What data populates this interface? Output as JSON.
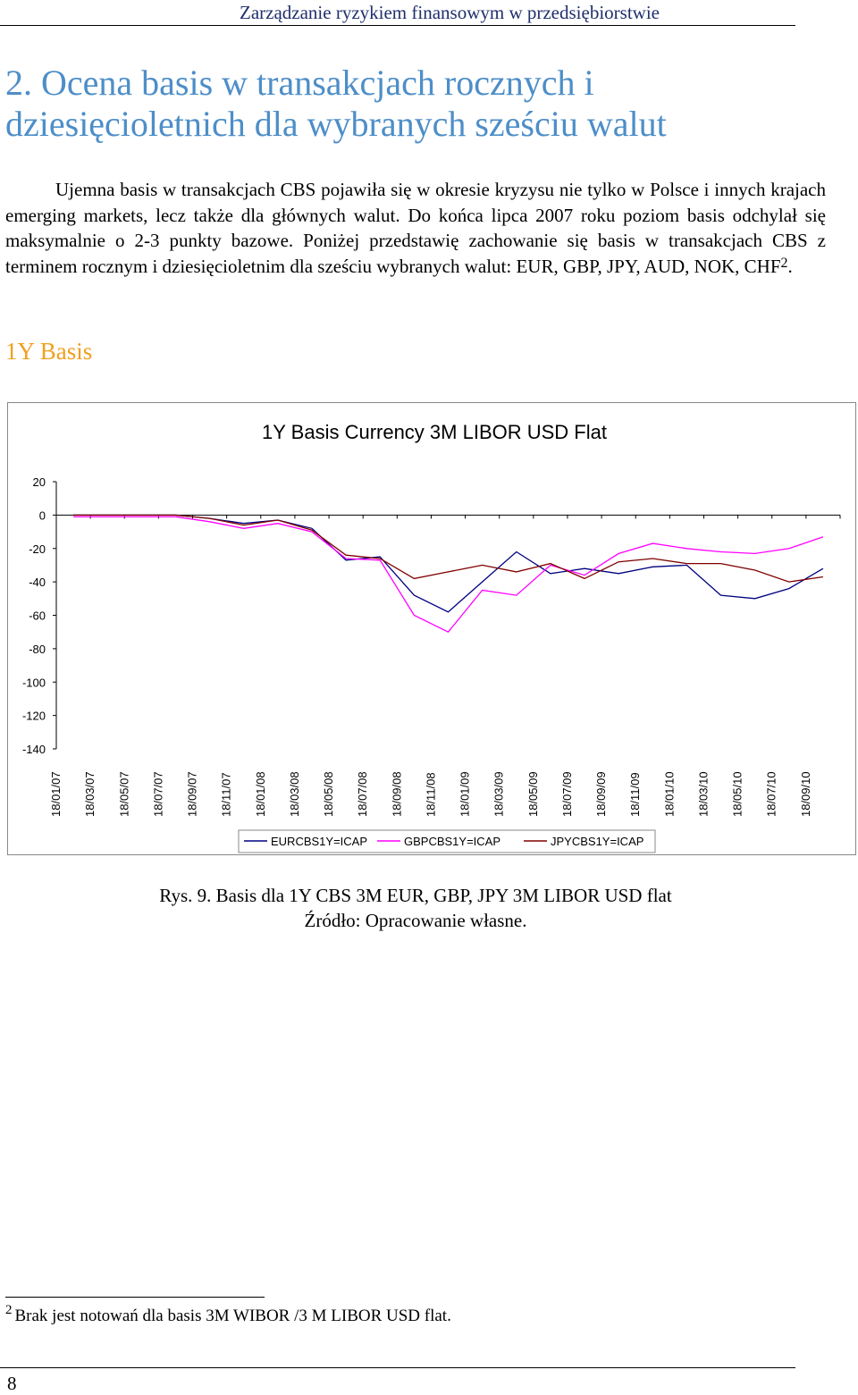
{
  "header": {
    "running_title": "Zarządzanie ryzykiem finansowym w przedsiębiorstwie"
  },
  "section": {
    "title": "2. Ocena basis w transakcjach rocznych i dziesięcioletnich dla wybranych sześciu walut",
    "paragraph": "Ujemna basis w transakcjach CBS pojawiła się w okresie kryzysu nie tylko w Polsce i innych krajach emerging markets, lecz także dla głównych walut. Do końca lipca 2007 roku poziom basis odchylał się maksymalnie o 2-3 punkty bazowe. Poniżej przedstawię zachowanie się basis w transakcjach CBS z terminem rocznym i dziesięcioletnim dla sześciu wybranych walut: EUR, GBP, JPY, AUD, NOK, CHF",
    "footnote_ref": "2",
    "paragraph_end": ".",
    "subheading": "1Y Basis"
  },
  "chart_data": {
    "type": "line",
    "title": "1Y Basis Currency 3M LIBOR USD Flat",
    "xlabel": "",
    "ylabel": "",
    "ylim": [
      -140,
      20
    ],
    "y_ticks": [
      20,
      0,
      -20,
      -40,
      -60,
      -80,
      -100,
      -120,
      -140
    ],
    "categories": [
      "18/01/07",
      "18/03/07",
      "18/05/07",
      "18/07/07",
      "18/09/07",
      "18/11/07",
      "18/01/08",
      "18/03/08",
      "18/05/08",
      "18/07/08",
      "18/09/08",
      "18/11/08",
      "18/01/09",
      "18/03/09",
      "18/05/09",
      "18/07/09",
      "18/09/09",
      "18/11/09",
      "18/01/10",
      "18/03/10",
      "18/05/10",
      "18/07/10",
      "18/09/10"
    ],
    "grid": false,
    "legend_position": "bottom",
    "series": [
      {
        "name": "EURCBS1Y=ICAP",
        "color": "#000080",
        "values": [
          0,
          0,
          0,
          0,
          -2,
          -5,
          -3,
          -8,
          -27,
          -25,
          -48,
          -58,
          -40,
          -22,
          -35,
          -32,
          -35,
          -31,
          -30,
          -48,
          -50,
          -44,
          -32
        ]
      },
      {
        "name": "GBPCBS1Y=ICAP",
        "color": "#ff00ff",
        "values": [
          -1,
          -1,
          -1,
          -1,
          -4,
          -8,
          -5,
          -10,
          -26,
          -27,
          -60,
          -70,
          -45,
          -48,
          -30,
          -36,
          -23,
          -17,
          -20,
          -22,
          -23,
          -20,
          -13
        ]
      },
      {
        "name": "JPYCBS1Y=ICAP",
        "color": "#800000",
        "values": [
          0,
          0,
          0,
          0,
          -2,
          -6,
          -3,
          -9,
          -24,
          -26,
          -38,
          -34,
          -30,
          -34,
          -29,
          -38,
          -28,
          -26,
          -29,
          -29,
          -33,
          -40,
          -37
        ]
      }
    ]
  },
  "caption": {
    "figure": "Rys. 9. Basis dla 1Y CBS 3M EUR, GBP, JPY 3M LIBOR USD flat",
    "source": "Źródło: Opracowanie własne."
  },
  "footnote": {
    "number": "2",
    "text": "Brak jest notowań dla basis 3M WIBOR /3 M LIBOR USD flat."
  },
  "footer": {
    "page_number": "8"
  }
}
